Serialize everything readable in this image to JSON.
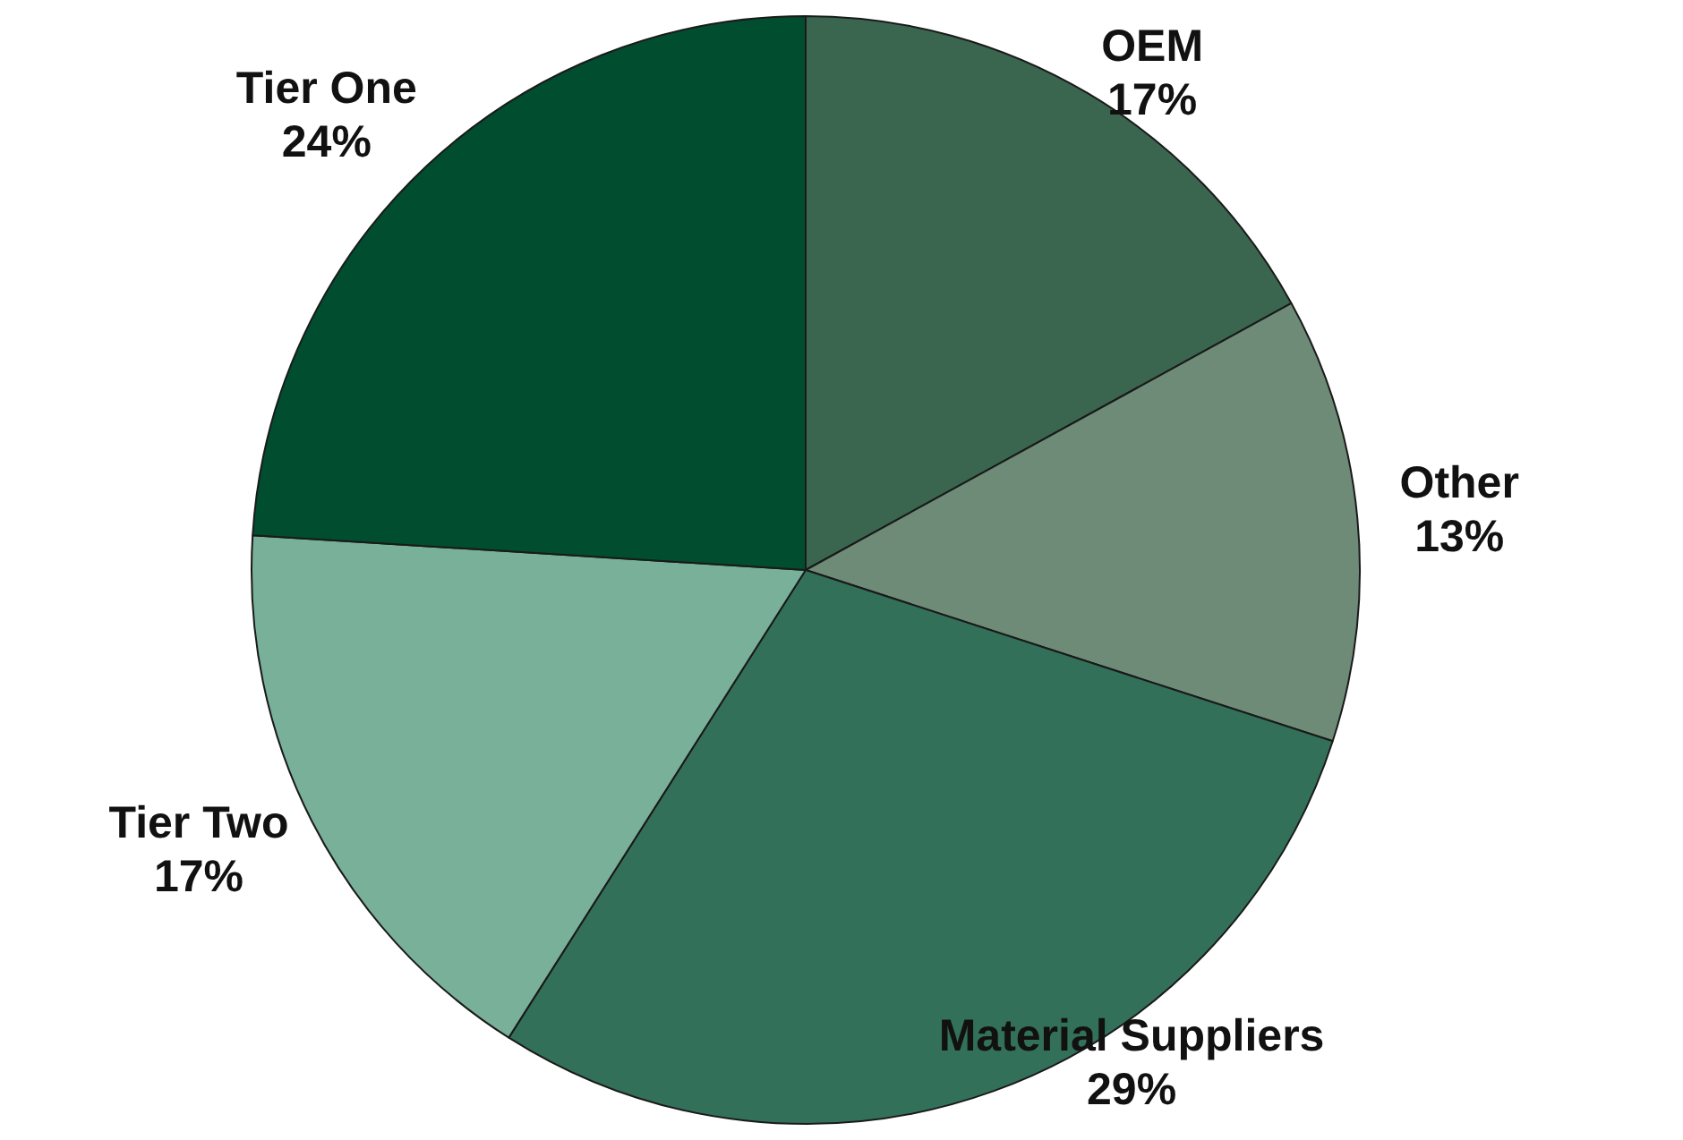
{
  "chart_data": {
    "type": "pie",
    "categories": [
      "OEM",
      "Other",
      "Material Suppliers",
      "Tier Two",
      "Tier One"
    ],
    "values": [
      17,
      13,
      29,
      17,
      24
    ],
    "colors": [
      "#3a6650",
      "#6e8b78",
      "#33705a",
      "#78b09a",
      "#004d30"
    ],
    "value_labels": [
      "17%",
      "13%",
      "29%",
      "17%",
      "24%"
    ],
    "legend": false
  }
}
